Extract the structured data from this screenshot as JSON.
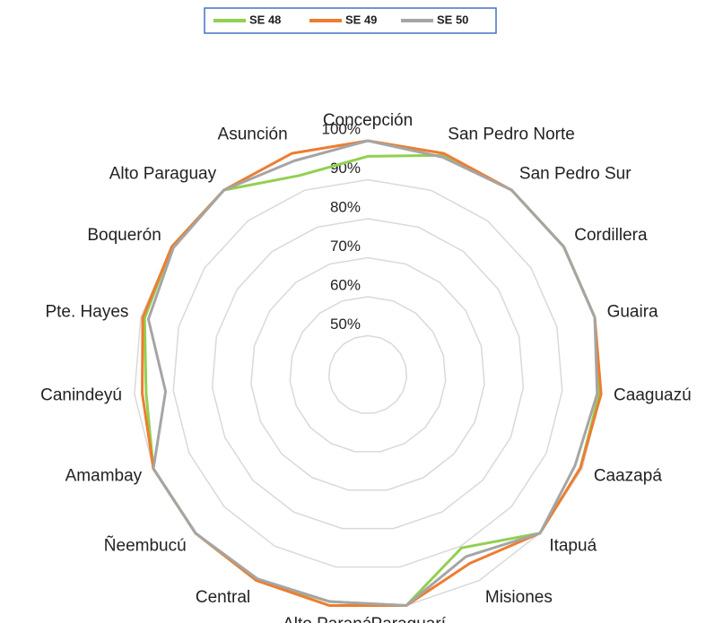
{
  "chart_data": {
    "type": "radar",
    "categories": [
      "Concepción",
      "San Pedro Norte",
      "San Pedro Sur",
      "Cordillera",
      "Guaira",
      "Caaguazú",
      "Caazapá",
      "Itapuá",
      "Misiones",
      "Paraguarí",
      "Alto Paraná",
      "Central",
      "Ñeembucú",
      "Amambay",
      "Canindeyú",
      "Pte. Hayes",
      "Boquerón",
      "Alto Paraguay",
      "Asunción"
    ],
    "series": [
      {
        "name": "SE 48",
        "color": "#92d050",
        "values": [
          96,
          99.5,
          100,
          100,
          100,
          99.5,
          99.5,
          100,
          90.5,
          100,
          99,
          100,
          100,
          100,
          97,
          99,
          100,
          100,
          94
        ]
      },
      {
        "name": "SE 49",
        "color": "#ed7d31",
        "values": [
          100,
          100,
          100,
          100,
          100,
          100,
          99.5,
          100,
          95,
          100,
          100,
          100,
          100,
          100,
          98,
          99.5,
          100,
          100,
          100
        ]
      },
      {
        "name": "SE 50",
        "color": "#a5a5a5",
        "values": [
          100,
          99,
          100,
          100,
          100,
          99,
          98,
          100,
          93,
          100,
          99,
          99.5,
          100,
          100,
          92,
          98,
          99.5,
          100,
          98
        ]
      }
    ],
    "ylim": [
      40,
      100
    ],
    "yticks": [
      {
        "value": 50,
        "label": "50%"
      },
      {
        "value": 60,
        "label": "60%"
      },
      {
        "value": 70,
        "label": "70%"
      },
      {
        "value": 80,
        "label": "80%"
      },
      {
        "value": 90,
        "label": "90%"
      },
      {
        "value": 100,
        "label": "100%"
      }
    ],
    "grid": true,
    "legend": "top"
  }
}
